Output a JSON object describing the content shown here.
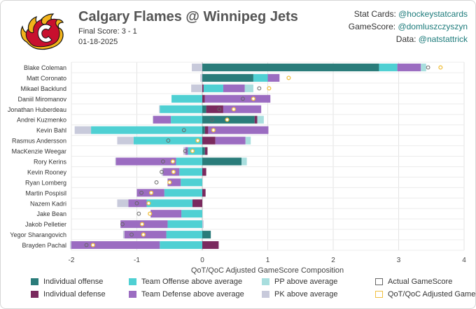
{
  "header": {
    "title": "Calgary Flames @ Winnipeg Jets",
    "final_score": "Final Score: 3 - 1",
    "date": "01-18-2025",
    "credits": [
      {
        "label": "Stat Cards: ",
        "handle": "@hockeystatcards"
      },
      {
        "label": "GameScore: ",
        "handle": "@domluszczyszyn"
      },
      {
        "label": "Data: ",
        "handle": "@natstattrick"
      }
    ],
    "logo": "calgary-flames-logo"
  },
  "colors": {
    "ind_off": "#2a7c7a",
    "ind_def": "#7a2a5e",
    "team_off": "#4fd0d3",
    "team_def": "#9b6cc1",
    "pp": "#a8dede",
    "pk": "#c8cadb",
    "actual_marker": "#666666",
    "adjusted_marker": "#f0c040"
  },
  "chart_data": {
    "type": "bar",
    "orientation": "horizontal-stacked",
    "xlabel": "QoT/QoC Adjusted GameScore Composition",
    "xlim": [
      -2,
      4
    ],
    "xticks": [
      -2,
      -1,
      0,
      1,
      2,
      3,
      4
    ],
    "categories": [
      "Blake Coleman",
      "Matt Coronato",
      "Mikael Backlund",
      "Daniil Miromanov",
      "Jonathan Huberdeau",
      "Andrei Kuzmenko",
      "Kevin Bahl",
      "Rasmus Andersson",
      "MacKenzie Weegar",
      "Rory Kerins",
      "Kevin Rooney",
      "Ryan Lomberg",
      "Martin Pospisil",
      "Nazem Kadri",
      "Jake Bean",
      "Jakob Pelletier",
      "Yegor Sharangovich",
      "Brayden Pachal"
    ],
    "series": [
      {
        "name": "Individual offense",
        "key": "ind_off",
        "values": [
          2.7,
          0.78,
          0.0,
          0.0,
          0.06,
          0.8,
          0.04,
          0.0,
          0.04,
          0.6,
          0.0,
          0.0,
          0.0,
          0.0,
          0.0,
          0.0,
          0.13,
          0.0
        ]
      },
      {
        "name": "Individual defense",
        "key": "ind_def",
        "values": [
          0.0,
          0.0,
          0.02,
          0.04,
          0.26,
          0.04,
          0.05,
          0.2,
          0.04,
          0.0,
          0.06,
          0.0,
          0.05,
          -0.15,
          0.0,
          0.0,
          0.0,
          0.25
        ]
      },
      {
        "name": "Team Offense above average",
        "key": "team_off",
        "values": [
          0.28,
          0.22,
          0.3,
          -0.47,
          -0.65,
          -0.48,
          -1.7,
          -1.05,
          -0.22,
          -0.4,
          -0.35,
          -0.33,
          -0.58,
          -0.7,
          -0.32,
          -0.53,
          -0.55,
          -0.65
        ]
      },
      {
        "name": "Team Defense above average",
        "key": "team_def",
        "values": [
          0.36,
          0.18,
          0.33,
          1.0,
          0.58,
          -0.27,
          0.92,
          0.46,
          -0.04,
          -0.92,
          -0.25,
          -0.2,
          -0.42,
          -0.28,
          -0.47,
          -0.72,
          -0.64,
          -1.35
        ]
      },
      {
        "name": "PP above average",
        "key": "pp",
        "values": [
          0.08,
          0.0,
          0.13,
          0.0,
          0.0,
          0.1,
          0.0,
          0.08,
          0.0,
          0.08,
          0.0,
          0.0,
          0.0,
          0.0,
          0.0,
          0.0,
          0.0,
          0.0
        ]
      },
      {
        "name": "PK above average",
        "key": "pk",
        "values": [
          -0.16,
          -0.03,
          -0.17,
          0.0,
          -0.01,
          -0.01,
          -0.25,
          -0.25,
          -0.03,
          -0.01,
          -0.02,
          0.0,
          0.0,
          -0.17,
          0.0,
          0.02,
          -0.02,
          -0.02
        ]
      }
    ],
    "actual_gamescore": [
      3.45,
      null,
      0.87,
      0.62,
      0.26,
      0.15,
      -0.28,
      -0.52,
      -0.26,
      -0.6,
      -0.62,
      -0.7,
      -0.93,
      -1.0,
      -0.97,
      -1.22,
      -1.08,
      -1.77
    ],
    "adjusted_gamescore": [
      3.64,
      1.32,
      1.02,
      0.78,
      0.48,
      0.38,
      0.17,
      -0.07,
      -0.15,
      -0.45,
      -0.44,
      -0.5,
      -0.78,
      -0.82,
      -0.8,
      -0.92,
      -0.9,
      -1.67
    ],
    "legend": [
      {
        "label": "Individual offense",
        "key": "ind_off",
        "kind": "fill"
      },
      {
        "label": "Team Offense above average",
        "key": "team_off",
        "kind": "fill"
      },
      {
        "label": "PP above average",
        "key": "pp",
        "kind": "fill"
      },
      {
        "label": "Actual GameScore",
        "key": "actual_marker",
        "kind": "outline"
      },
      {
        "label": "Individual defense",
        "key": "ind_def",
        "kind": "fill"
      },
      {
        "label": "Team Defense above average",
        "key": "team_def",
        "kind": "fill"
      },
      {
        "label": "PK above average",
        "key": "pk",
        "kind": "fill"
      },
      {
        "label": "QoT/QoC Adjusted GameScore",
        "key": "adjusted_marker",
        "kind": "outline"
      }
    ]
  }
}
